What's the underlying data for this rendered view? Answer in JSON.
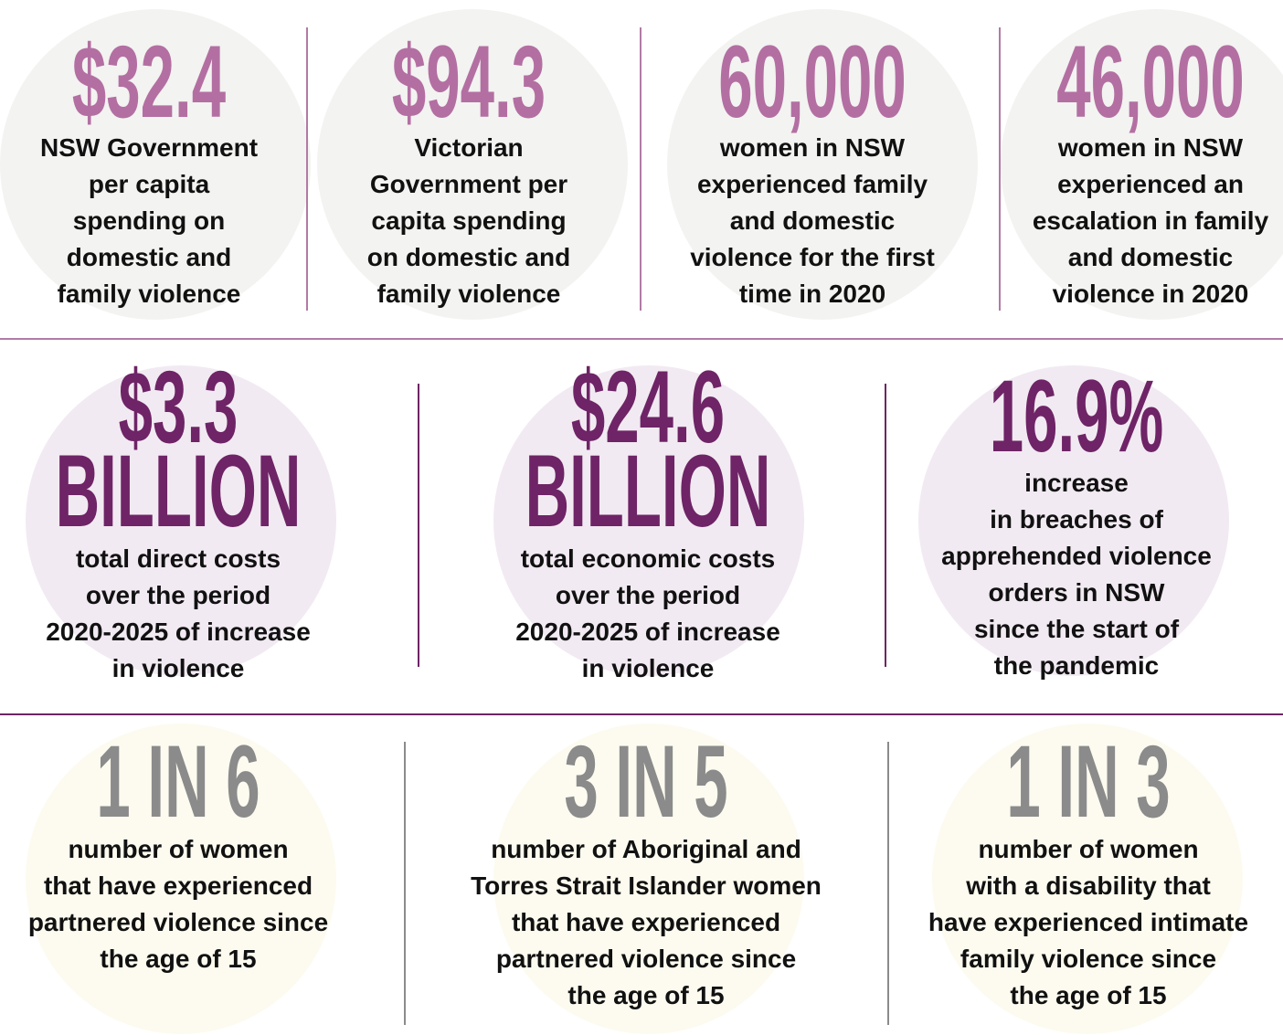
{
  "rows": [
    {
      "stats": [
        {
          "figure": [
            "$32.4"
          ],
          "lines": [
            "NSW Government",
            "per capita",
            "spending on",
            "domestic and",
            "family violence"
          ]
        },
        {
          "figure": [
            "$94.3"
          ],
          "lines": [
            "Victorian",
            "Government per",
            "capita spending",
            "on domestic and",
            "family violence"
          ]
        },
        {
          "figure": [
            "60,000"
          ],
          "lines": [
            "women in NSW",
            "experienced family",
            "and domestic",
            "violence for the first",
            "time in 2020"
          ]
        },
        {
          "figure": [
            "46,000"
          ],
          "lines": [
            "women in NSW",
            "experienced an",
            "escalation in family",
            "and domestic",
            "violence in 2020"
          ]
        }
      ]
    },
    {
      "stats": [
        {
          "figure": [
            "$3.3",
            "BILLION"
          ],
          "lines": [
            "total direct costs",
            "over the period",
            "2020-2025 of increase",
            "in violence"
          ]
        },
        {
          "figure": [
            "$24.6",
            "BILLION"
          ],
          "lines": [
            "total economic costs",
            "over the period",
            "2020-2025 of increase",
            "in violence"
          ]
        },
        {
          "figure": [
            "16.9%"
          ],
          "lines": [
            "increase",
            "in breaches of",
            "apprehended violence",
            "orders in NSW",
            "since the start of",
            "the pandemic"
          ]
        }
      ]
    },
    {
      "stats": [
        {
          "figure": [
            "1 IN 6"
          ],
          "lines": [
            "number of women",
            "that have experienced",
            "partnered violence since",
            "the age of 15"
          ]
        },
        {
          "figure": [
            "3 IN 5"
          ],
          "lines": [
            "number of Aboriginal and",
            "Torres Strait Islander women",
            "that have experienced",
            "partnered violence since",
            "the age of 15"
          ]
        },
        {
          "figure": [
            "1 IN 3"
          ],
          "lines": [
            "number of women",
            "with a disability that",
            "have experienced intimate",
            "family violence since",
            "the age of 15"
          ]
        }
      ]
    }
  ]
}
